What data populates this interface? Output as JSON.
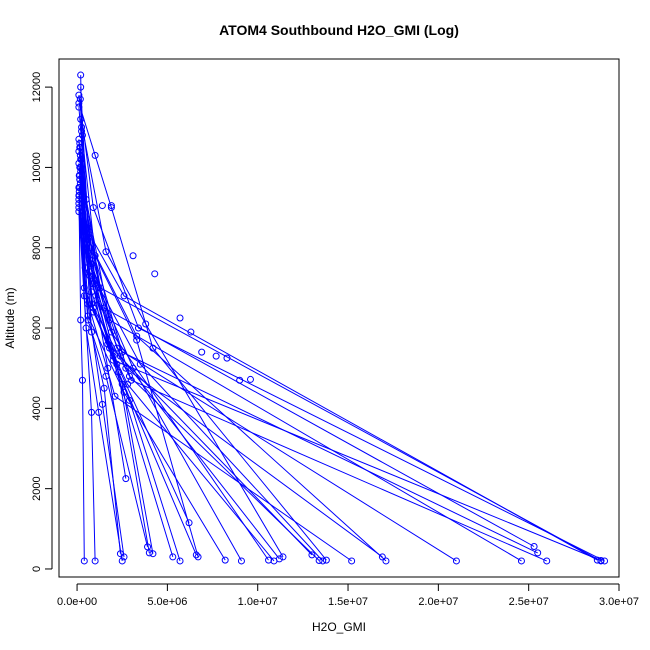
{
  "chart_data": {
    "type": "line",
    "title": "ATOM4 Southbound H2O_GMI (Log)",
    "xlabel": "H2O_GMI",
    "ylabel": "Altitude (m)",
    "xlim": [
      -1000000,
      30000000
    ],
    "ylim": [
      -200,
      12700
    ],
    "x_ticks": [
      0,
      5000000,
      10000000,
      15000000,
      20000000,
      25000000,
      30000000
    ],
    "x_tick_labels": [
      "0.0e+00",
      "5.0e+06",
      "1.0e+07",
      "1.5e+07",
      "2.0e+07",
      "2.5e+07",
      "3.0e+07"
    ],
    "y_ticks": [
      0,
      2000,
      4000,
      6000,
      8000,
      10000,
      12000
    ],
    "y_tick_labels": [
      "0",
      "2000",
      "4000",
      "6000",
      "8000",
      "10000",
      "12000"
    ],
    "grid": false,
    "series_color": "#0000ff",
    "series": [
      {
        "x": [
          29000000,
          1300000,
          300000,
          200000
        ],
        "y": [
          200,
          7000,
          9500,
          12300
        ]
      },
      {
        "x": [
          28800000,
          2600000,
          500000,
          150000
        ],
        "y": [
          220,
          6800,
          8500,
          10500
        ]
      },
      {
        "x": [
          29200000,
          3400000,
          900000,
          100000
        ],
        "y": [
          200,
          6000,
          9000,
          11800
        ]
      },
      {
        "x": [
          29000000,
          2000000,
          400000,
          250000
        ],
        "y": [
          210,
          5200,
          7000,
          11000
        ]
      },
      {
        "x": [
          25300000,
          1500000,
          600000,
          200000
        ],
        "y": [
          560,
          6500,
          8500,
          12000
        ]
      },
      {
        "x": [
          25500000,
          2500000,
          300000,
          100000
        ],
        "y": [
          400,
          5400,
          8800,
          10100
        ]
      },
      {
        "x": [
          26000000,
          3000000,
          800000,
          150000
        ],
        "y": [
          200,
          4700,
          7600,
          9800
        ]
      },
      {
        "x": [
          24600000,
          1800000,
          500000,
          100000
        ],
        "y": [
          200,
          6200,
          9200,
          11500
        ]
      },
      {
        "x": [
          21000000,
          2200000,
          700000,
          300000
        ],
        "y": [
          200,
          5500,
          8000,
          10800
        ]
      },
      {
        "x": [
          17100000,
          3300000,
          600000,
          150000
        ],
        "y": [
          200,
          5800,
          8200,
          10000
        ]
      },
      {
        "x": [
          16900000,
          2700000,
          450000,
          180000
        ],
        "y": [
          300,
          5000,
          7500,
          9600
        ]
      },
      {
        "x": [
          15200000,
          2100000,
          500000,
          120000
        ],
        "y": [
          200,
          4300,
          6800,
          9300
        ]
      },
      {
        "x": [
          13800000,
          4200000,
          1900000,
          100000
        ],
        "y": [
          220,
          5500,
          9000,
          11600
        ]
      },
      {
        "x": [
          13600000,
          3500000,
          1000000,
          200000
        ],
        "y": [
          200,
          5100,
          7200,
          10200
        ]
      },
      {
        "x": [
          13400000,
          2900000,
          800000,
          150000
        ],
        "y": [
          210,
          4800,
          6600,
          9700
        ]
      },
      {
        "x": [
          13000000,
          1700000,
          400000,
          100000
        ],
        "y": [
          350,
          5600,
          8300,
          10700
        ]
      },
      {
        "x": [
          11400000,
          3800000,
          1600000,
          200000
        ],
        "y": [
          300,
          6100,
          7900,
          11200
        ]
      },
      {
        "x": [
          11200000,
          2400000,
          700000,
          150000
        ],
        "y": [
          250,
          5300,
          7400,
          9500
        ]
      },
      {
        "x": [
          10900000,
          2800000,
          900000,
          100000
        ],
        "y": [
          200,
          4600,
          6400,
          9100
        ]
      },
      {
        "x": [
          10600000,
          1900000,
          500000,
          180000
        ],
        "y": [
          220,
          5900,
          8100,
          10300
        ]
      },
      {
        "x": [
          9100000,
          3100000,
          1200000,
          250000
        ],
        "y": [
          200,
          5000,
          7000,
          10900
        ]
      },
      {
        "x": [
          8200000,
          2600000,
          600000,
          120000
        ],
        "y": [
          220,
          4400,
          6300,
          9400
        ]
      },
      {
        "x": [
          6700000,
          3300000,
          1000000,
          100000
        ],
        "y": [
          300,
          5700,
          7800,
          10400
        ]
      },
      {
        "x": [
          6600000,
          2300000,
          800000,
          200000
        ],
        "y": [
          350,
          4900,
          6900,
          9900
        ]
      },
      {
        "x": [
          6200000,
          2000000,
          700000,
          150000
        ],
        "y": [
          1150,
          5300,
          7300,
          10600
        ]
      },
      {
        "x": [
          5700000,
          2900000,
          900000,
          100000
        ],
        "y": [
          200,
          4200,
          6500,
          9200
        ]
      },
      {
        "x": [
          5300000,
          1800000,
          500000,
          180000
        ],
        "y": [
          300,
          5500,
          8000,
          11700
        ]
      },
      {
        "x": [
          4200000,
          2500000,
          1100000,
          250000
        ],
        "y": [
          380,
          4600,
          6700,
          10200
        ]
      },
      {
        "x": [
          4000000,
          2200000,
          700000,
          120000
        ],
        "y": [
          400,
          5100,
          7700,
          9800
        ]
      },
      {
        "x": [
          3900000,
          1600000,
          600000,
          100000
        ],
        "y": [
          550,
          4800,
          6200,
          9000
        ]
      },
      {
        "x": [
          2700000,
          1700000,
          900000,
          200000
        ],
        "y": [
          2250,
          5000,
          7100,
          10000
        ]
      },
      {
        "x": [
          2600000,
          1400000,
          600000,
          150000
        ],
        "y": [
          300,
          4100,
          6600,
          9700
        ]
      },
      {
        "x": [
          2500000,
          1200000,
          500000,
          100000
        ],
        "y": [
          200,
          3900,
          6000,
          8900
        ]
      },
      {
        "x": [
          2400000,
          1500000,
          800000,
          180000
        ],
        "y": [
          380,
          4500,
          5900,
          10500
        ]
      },
      {
        "x": [
          1000000,
          800000,
          400000,
          100000
        ],
        "y": [
          200,
          3900,
          6800,
          9500
        ]
      },
      {
        "x": [
          400000,
          300000,
          200000,
          100000
        ],
        "y": [
          200,
          4700,
          6200,
          9300
        ]
      }
    ],
    "extra_points": [
      {
        "x": 6900000,
        "y": 5400
      },
      {
        "x": 7700000,
        "y": 5300
      },
      {
        "x": 8300000,
        "y": 5250
      },
      {
        "x": 9000000,
        "y": 4700
      },
      {
        "x": 9600000,
        "y": 4720
      },
      {
        "x": 5700000,
        "y": 6250
      },
      {
        "x": 6300000,
        "y": 5900
      },
      {
        "x": 3100000,
        "y": 7800
      },
      {
        "x": 4300000,
        "y": 7350
      },
      {
        "x": 1400000,
        "y": 9050
      },
      {
        "x": 1900000,
        "y": 9050
      },
      {
        "x": 1000000,
        "y": 10300
      }
    ]
  }
}
